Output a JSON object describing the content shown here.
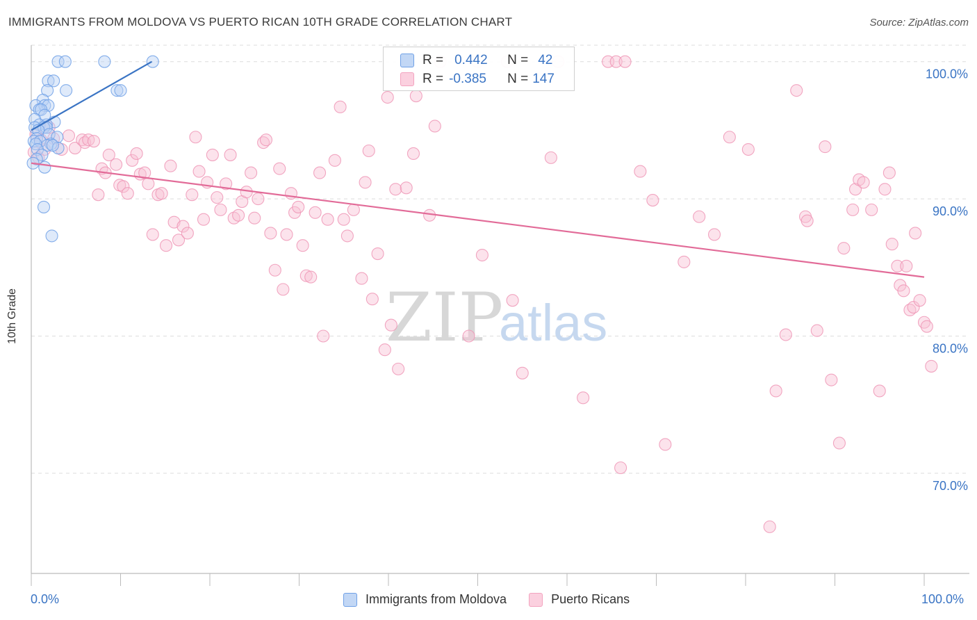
{
  "title": "IMMIGRANTS FROM MOLDOVA VS PUERTO RICAN 10TH GRADE CORRELATION CHART",
  "source": "Source: ZipAtlas.com",
  "watermark": {
    "zip": "ZIP",
    "atlas": "atlas"
  },
  "legend": {
    "r_label": "R =",
    "n_label": "N =",
    "series1": {
      "r": "0.442",
      "n": "42"
    },
    "series2": {
      "r": "-0.385",
      "n": "147"
    }
  },
  "colors": {
    "blue": "#6fa0e6",
    "blue_line": "#3a74c4",
    "pink": "#f3a3bf",
    "pink_line": "#e26b98",
    "axis_text": "#3a74c4"
  },
  "chart_data": {
    "type": "scatter",
    "xlabel": "",
    "ylabel": "10th Grade",
    "x_ticks": [
      "0.0%",
      "100.0%"
    ],
    "y_ticks": [
      "100.0%",
      "90.0%",
      "80.0%",
      "70.0%"
    ],
    "xlim": [
      0,
      100
    ],
    "ylim": [
      62.7,
      101.2
    ],
    "grid": true,
    "series": [
      {
        "name": "Immigrants from Moldova",
        "color": "#6fa0e6",
        "trend": {
          "x": [
            0,
            13.5
          ],
          "y": [
            95.0,
            100.0
          ]
        },
        "points": [
          [
            3.0,
            100.0
          ],
          [
            3.8,
            100.0
          ],
          [
            8.2,
            100.0
          ],
          [
            13.6,
            100.0
          ],
          [
            1.9,
            98.6
          ],
          [
            2.5,
            98.6
          ],
          [
            1.8,
            97.9
          ],
          [
            3.9,
            97.9
          ],
          [
            9.6,
            97.9
          ],
          [
            10.0,
            97.9
          ],
          [
            1.3,
            97.2
          ],
          [
            0.5,
            96.8
          ],
          [
            1.5,
            96.8
          ],
          [
            1.9,
            96.8
          ],
          [
            0.9,
            96.5
          ],
          [
            1.1,
            96.5
          ],
          [
            1.5,
            96.1
          ],
          [
            0.4,
            95.8
          ],
          [
            2.6,
            95.6
          ],
          [
            0.9,
            95.4
          ],
          [
            1.7,
            95.4
          ],
          [
            0.4,
            95.2
          ],
          [
            1.4,
            95.2
          ],
          [
            1.7,
            95.2
          ],
          [
            0.8,
            95.0
          ],
          [
            2.0,
            94.7
          ],
          [
            2.9,
            94.5
          ],
          [
            0.6,
            94.4
          ],
          [
            0.3,
            94.2
          ],
          [
            1.0,
            94.2
          ],
          [
            0.5,
            94.0
          ],
          [
            2.2,
            94.0
          ],
          [
            1.8,
            93.9
          ],
          [
            3.0,
            93.7
          ],
          [
            2.4,
            93.9
          ],
          [
            0.7,
            93.6
          ],
          [
            1.2,
            93.2
          ],
          [
            0.6,
            92.9
          ],
          [
            0.2,
            92.6
          ],
          [
            1.5,
            92.3
          ],
          [
            1.4,
            89.4
          ],
          [
            2.3,
            87.3
          ]
        ]
      },
      {
        "name": "Puerto Ricans",
        "color": "#f3a3bf",
        "trend": {
          "x": [
            0,
            100
          ],
          "y": [
            92.6,
            84.3
          ]
        },
        "points": [
          [
            0.3,
            93.4
          ],
          [
            0.5,
            94.7
          ],
          [
            0.8,
            93.0
          ],
          [
            1.1,
            94.3
          ],
          [
            1.5,
            93.6
          ],
          [
            2.0,
            95.2
          ],
          [
            2.5,
            94.4
          ],
          [
            3.4,
            93.6
          ],
          [
            4.2,
            94.6
          ],
          [
            4.9,
            93.7
          ],
          [
            5.7,
            94.3
          ],
          [
            6.0,
            94.1
          ],
          [
            6.4,
            94.3
          ],
          [
            7.0,
            94.2
          ],
          [
            7.5,
            90.3
          ],
          [
            7.9,
            92.2
          ],
          [
            8.3,
            91.9
          ],
          [
            8.7,
            93.2
          ],
          [
            9.5,
            92.5
          ],
          [
            9.9,
            91.0
          ],
          [
            10.3,
            90.9
          ],
          [
            10.8,
            90.4
          ],
          [
            11.3,
            92.8
          ],
          [
            11.8,
            93.3
          ],
          [
            12.2,
            91.8
          ],
          [
            12.7,
            91.9
          ],
          [
            13.1,
            91.1
          ],
          [
            13.6,
            87.4
          ],
          [
            14.2,
            90.3
          ],
          [
            14.6,
            90.4
          ],
          [
            15.1,
            86.6
          ],
          [
            15.6,
            92.4
          ],
          [
            16.0,
            88.3
          ],
          [
            16.5,
            87.0
          ],
          [
            17.0,
            88.0
          ],
          [
            17.5,
            87.5
          ],
          [
            18.0,
            90.3
          ],
          [
            18.4,
            94.5
          ],
          [
            18.8,
            92.0
          ],
          [
            19.3,
            88.5
          ],
          [
            19.7,
            91.2
          ],
          [
            20.3,
            93.2
          ],
          [
            20.8,
            90.1
          ],
          [
            21.2,
            89.2
          ],
          [
            21.8,
            91.1
          ],
          [
            22.3,
            93.2
          ],
          [
            22.7,
            88.6
          ],
          [
            23.2,
            88.8
          ],
          [
            23.6,
            89.8
          ],
          [
            24.1,
            90.5
          ],
          [
            24.6,
            91.9
          ],
          [
            25.0,
            88.6
          ],
          [
            25.4,
            90.0
          ],
          [
            26.0,
            94.1
          ],
          [
            26.3,
            94.3
          ],
          [
            26.8,
            87.5
          ],
          [
            27.3,
            84.8
          ],
          [
            27.8,
            92.2
          ],
          [
            28.2,
            83.4
          ],
          [
            28.6,
            87.4
          ],
          [
            29.1,
            90.4
          ],
          [
            29.5,
            89.0
          ],
          [
            29.9,
            89.4
          ],
          [
            30.4,
            86.6
          ],
          [
            30.8,
            84.4
          ],
          [
            31.3,
            84.3
          ],
          [
            31.8,
            89.0
          ],
          [
            32.3,
            91.9
          ],
          [
            32.7,
            80.0
          ],
          [
            33.2,
            88.5
          ],
          [
            34.0,
            92.8
          ],
          [
            34.6,
            96.7
          ],
          [
            35.0,
            88.5
          ],
          [
            35.4,
            87.3
          ],
          [
            36.1,
            89.2
          ],
          [
            37.0,
            84.2
          ],
          [
            37.4,
            91.2
          ],
          [
            37.8,
            93.5
          ],
          [
            38.2,
            82.7
          ],
          [
            38.8,
            86.0
          ],
          [
            39.9,
            97.4
          ],
          [
            39.6,
            79.0
          ],
          [
            40.3,
            80.8
          ],
          [
            40.8,
            90.7
          ],
          [
            41.1,
            77.6
          ],
          [
            42.0,
            90.8
          ],
          [
            42.8,
            93.3
          ],
          [
            43.1,
            97.5
          ],
          [
            44.6,
            88.8
          ],
          [
            45.2,
            95.3
          ],
          [
            45.8,
            100.0
          ],
          [
            49.0,
            80.0
          ],
          [
            50.0,
            100.0
          ],
          [
            50.5,
            85.9
          ],
          [
            53.3,
            100.0
          ],
          [
            53.9,
            82.6
          ],
          [
            55.0,
            77.3
          ],
          [
            58.2,
            93.0
          ],
          [
            59.0,
            100.0
          ],
          [
            61.8,
            75.5
          ],
          [
            64.6,
            100.0
          ],
          [
            65.5,
            100.0
          ],
          [
            66.0,
            70.4
          ],
          [
            66.5,
            100.0
          ],
          [
            68.2,
            92.0
          ],
          [
            69.6,
            89.9
          ],
          [
            71.0,
            72.1
          ],
          [
            73.1,
            85.4
          ],
          [
            74.8,
            88.7
          ],
          [
            76.5,
            87.4
          ],
          [
            78.2,
            94.5
          ],
          [
            80.3,
            93.6
          ],
          [
            82.7,
            66.1
          ],
          [
            83.4,
            76.0
          ],
          [
            84.5,
            80.1
          ],
          [
            85.7,
            97.9
          ],
          [
            86.7,
            88.7
          ],
          [
            86.9,
            88.4
          ],
          [
            88.0,
            80.4
          ],
          [
            88.9,
            93.8
          ],
          [
            89.6,
            76.8
          ],
          [
            90.5,
            72.2
          ],
          [
            91.0,
            86.4
          ],
          [
            92.0,
            89.2
          ],
          [
            92.3,
            90.7
          ],
          [
            92.7,
            91.4
          ],
          [
            93.2,
            91.2
          ],
          [
            94.1,
            89.2
          ],
          [
            95.0,
            76.0
          ],
          [
            95.6,
            90.7
          ],
          [
            96.1,
            91.9
          ],
          [
            96.4,
            86.7
          ],
          [
            97.0,
            85.1
          ],
          [
            97.3,
            83.7
          ],
          [
            97.7,
            83.3
          ],
          [
            98.0,
            85.1
          ],
          [
            98.4,
            81.9
          ],
          [
            98.8,
            82.1
          ],
          [
            99.0,
            87.5
          ],
          [
            99.5,
            82.6
          ],
          [
            100.0,
            81.0
          ],
          [
            100.3,
            80.7
          ],
          [
            100.8,
            77.8
          ]
        ]
      }
    ]
  }
}
